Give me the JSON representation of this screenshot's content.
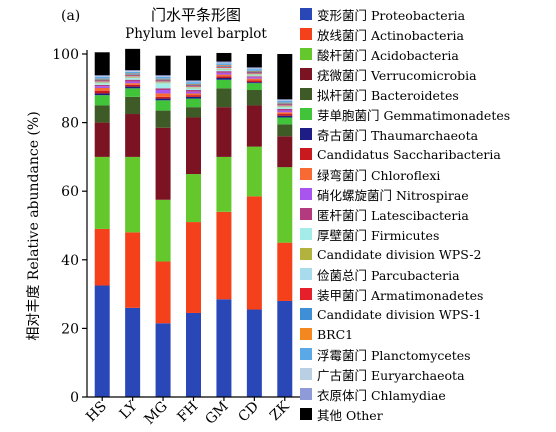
{
  "chart_data": {
    "type": "bar",
    "stacked": true,
    "panel_label": "(a)",
    "title": "门水平条形图",
    "subtitle": "Phylum level barplot",
    "xlabel": "",
    "ylabel": "相对丰度 Relative abundance (%)",
    "ylim": [
      0,
      100
    ],
    "yticks": [
      0,
      20,
      40,
      60,
      80,
      100
    ],
    "categories": [
      "HS",
      "LY",
      "MG",
      "FH",
      "GM",
      "CD",
      "ZK"
    ],
    "legend_position": "right",
    "series": [
      {
        "name": "变形菌门 Proteobacteria",
        "color": "#2a47b8",
        "values": [
          32.5,
          26,
          21.5,
          24.5,
          28.5,
          25.5,
          28
        ]
      },
      {
        "name": "放线菌门 Actinobacteria",
        "color": "#f5401c",
        "values": [
          16.5,
          22,
          18,
          26.5,
          25.5,
          33,
          17
        ]
      },
      {
        "name": "酸杆菌门 Acidobacteria",
        "color": "#64c82d",
        "values": [
          21,
          22,
          18,
          14,
          16,
          14.5,
          22
        ]
      },
      {
        "name": "疣微菌门 Verrucomicrobia",
        "color": "#7b1322",
        "values": [
          10,
          12.5,
          21,
          16.5,
          14.5,
          12,
          9
        ]
      },
      {
        "name": "拟杆菌门 Bacteroidetes",
        "color": "#3e5a26",
        "values": [
          5,
          5,
          5,
          3,
          5.5,
          4.5,
          3.5
        ]
      },
      {
        "name": "芽单胞菌门 Gemmatimonadetes",
        "color": "#41c43a",
        "values": [
          3,
          2.5,
          3,
          2.5,
          2.5,
          2,
          2
        ]
      },
      {
        "name": "奇古菌门 Thaumarchaeota",
        "color": "#1d1d85",
        "values": [
          0.5,
          0.5,
          0.5,
          0.5,
          0.5,
          0.3,
          0.5
        ]
      },
      {
        "name": "Candidatus Saccharibacteria",
        "color": "#c8191e",
        "values": [
          0.8,
          0.5,
          0.5,
          0.5,
          0.5,
          0.5,
          0.5
        ]
      },
      {
        "name": "绿弯菌门 Chloroflexi",
        "color": "#f76a34",
        "values": [
          0.8,
          0.5,
          1,
          0.5,
          0.5,
          0.5,
          0.5
        ]
      },
      {
        "name": "硝化螺旋菌门 Nitrospirae",
        "color": "#a855ef",
        "values": [
          0.5,
          0.5,
          1,
          0.5,
          0.5,
          0.4,
          0.5
        ]
      },
      {
        "name": "匿杆菌门 Latescibacteria",
        "color": "#b33a7f",
        "values": [
          0.4,
          0.5,
          0.5,
          0.5,
          0.5,
          0.3,
          0.5
        ]
      },
      {
        "name": "厚壁菌门 Firmicutes",
        "color": "#a3ece9",
        "values": [
          0.5,
          0.5,
          1.5,
          0.5,
          0.5,
          0.3,
          0.5
        ]
      },
      {
        "name": "Candidate division WPS-2",
        "color": "#b2b33e",
        "values": [
          0.2,
          0.2,
          0.2,
          0.2,
          0.2,
          0.2,
          0.2
        ]
      },
      {
        "name": "俭菌总门 Parcubacteria",
        "color": "#a8dced",
        "values": [
          0.3,
          0.3,
          0.3,
          0.3,
          0.3,
          0.3,
          0.3
        ]
      },
      {
        "name": "装甲菌门 Armatimonadetes",
        "color": "#e5202a",
        "values": [
          0.3,
          0.3,
          0.3,
          0.3,
          0.3,
          0.3,
          0.3
        ]
      },
      {
        "name": "Candidate division WPS-1",
        "color": "#3f8fd6",
        "values": [
          0.3,
          0.3,
          0.3,
          0.3,
          0.3,
          0.3,
          0.3
        ]
      },
      {
        "name": "BRC1",
        "color": "#f5871f",
        "values": [
          0.2,
          0.2,
          0.2,
          0.2,
          0.2,
          0.2,
          0.2
        ]
      },
      {
        "name": "浮霉菌门 Planctomycetes",
        "color": "#5aa9e6",
        "values": [
          0.5,
          0.5,
          0.5,
          0.5,
          0.5,
          0.5,
          0.5
        ]
      },
      {
        "name": "广古菌门 Euryarchaeota",
        "color": "#b9cfe3",
        "values": [
          0.2,
          0.2,
          0.2,
          0.2,
          0.2,
          0.2,
          0.2
        ]
      },
      {
        "name": "衣原体门 Chlamydiae",
        "color": "#8f9bd8",
        "values": [
          0.3,
          0.3,
          0.3,
          0.3,
          0.3,
          0.3,
          0.3
        ]
      },
      {
        "name": "其他 Other",
        "color": "#000000",
        "values": [
          6.7,
          6.2,
          5.7,
          7.2,
          2.5,
          3.9,
          13.2
        ]
      }
    ]
  }
}
